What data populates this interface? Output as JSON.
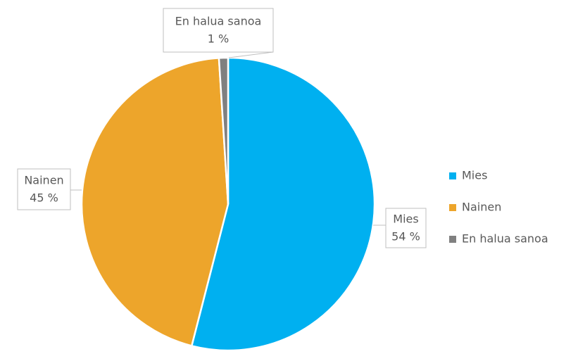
{
  "chart_data": {
    "type": "pie",
    "categories": [
      "Mies",
      "Nainen",
      "En halua sanoa"
    ],
    "values": [
      54,
      45,
      1
    ],
    "value_labels": [
      "54 %",
      "45 %",
      "1 %"
    ],
    "colors": [
      "#00b0f0",
      "#eda52b",
      "#808080"
    ],
    "legend": "right"
  }
}
